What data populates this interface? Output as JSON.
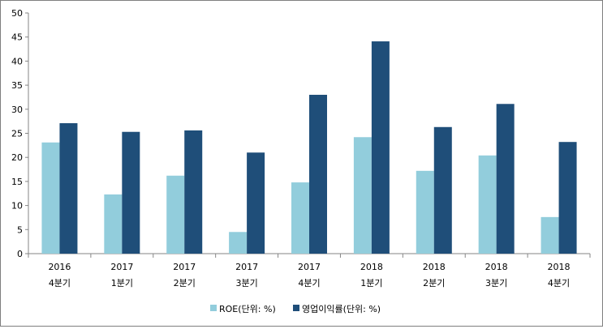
{
  "chart_data": {
    "type": "bar",
    "title": "",
    "xlabel": "",
    "ylabel": "",
    "ylim": [
      0,
      50
    ],
    "yticks": [
      0,
      5,
      10,
      15,
      20,
      25,
      30,
      35,
      40,
      45,
      50
    ],
    "categories": [
      [
        "2016",
        "4분기"
      ],
      [
        "2017",
        "1분기"
      ],
      [
        "2017",
        "2분기"
      ],
      [
        "2017",
        "3분기"
      ],
      [
        "2017",
        "4분기"
      ],
      [
        "2018",
        "1분기"
      ],
      [
        "2018",
        "2분기"
      ],
      [
        "2018",
        "3분기"
      ],
      [
        "2018",
        "4분기"
      ]
    ],
    "series": [
      {
        "name": "ROE(단위: %)",
        "color": "#92cddc",
        "values": [
          23.1,
          12.3,
          16.2,
          4.5,
          14.8,
          24.2,
          17.2,
          20.4,
          7.6
        ]
      },
      {
        "name": "영업이익률(단위: %)",
        "color": "#1f4e79",
        "values": [
          27.1,
          25.3,
          25.6,
          21.0,
          33.0,
          44.1,
          26.3,
          31.1,
          23.2
        ]
      }
    ],
    "legend_position": "bottom",
    "grid": false
  }
}
